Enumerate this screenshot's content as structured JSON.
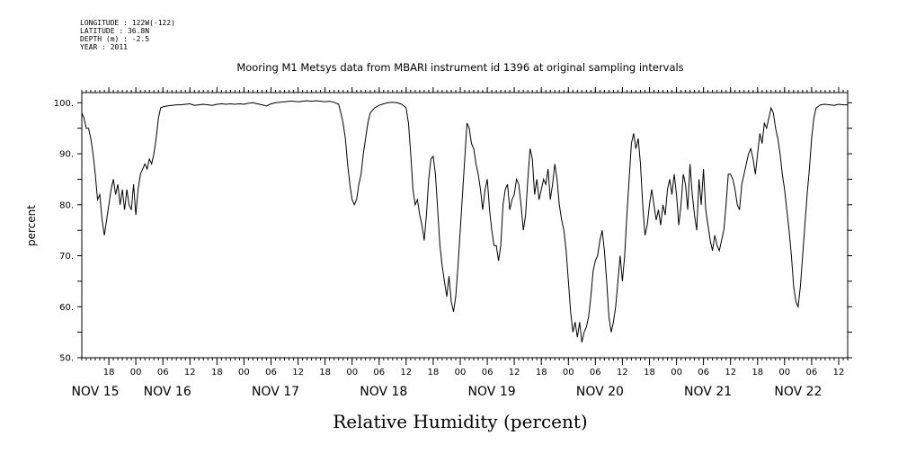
{
  "header": {
    "longitude": "LONGITUDE : 122W(-122)",
    "latitude": "LATITUDE : 36.8N",
    "depth": "DEPTH (m) : -2.5",
    "year": "YEAR : 2011"
  },
  "chart_data": {
    "type": "line",
    "title": "Mooring M1 Metsys data from MBARI instrument id 1396 at original sampling intervals",
    "xlabel": "Relative Humidity (percent)",
    "ylabel": "percent",
    "ylim": [
      50,
      102
    ],
    "yticks": [
      50,
      60,
      70,
      80,
      90,
      100
    ],
    "ytick_labels": [
      "50.",
      "60.",
      "70.",
      "80.",
      "90.",
      "100."
    ],
    "xlim_hours": [
      12,
      182
    ],
    "grid": false,
    "x_ticks": [
      {
        "h": 18,
        "label": "18"
      },
      {
        "h": 24,
        "label": "00"
      },
      {
        "h": 30,
        "label": "06"
      },
      {
        "h": 36,
        "label": "12"
      },
      {
        "h": 42,
        "label": "18"
      },
      {
        "h": 48,
        "label": "00"
      },
      {
        "h": 54,
        "label": "06"
      },
      {
        "h": 60,
        "label": "12"
      },
      {
        "h": 66,
        "label": "18"
      },
      {
        "h": 72,
        "label": "00"
      },
      {
        "h": 78,
        "label": "06"
      },
      {
        "h": 84,
        "label": "12"
      },
      {
        "h": 90,
        "label": "18"
      },
      {
        "h": 96,
        "label": "00"
      },
      {
        "h": 102,
        "label": "06"
      },
      {
        "h": 108,
        "label": "12"
      },
      {
        "h": 114,
        "label": "18"
      },
      {
        "h": 120,
        "label": "00"
      },
      {
        "h": 126,
        "label": "06"
      },
      {
        "h": 132,
        "label": "12"
      },
      {
        "h": 138,
        "label": "18"
      },
      {
        "h": 144,
        "label": "00"
      },
      {
        "h": 150,
        "label": "06"
      },
      {
        "h": 156,
        "label": "12"
      },
      {
        "h": 162,
        "label": "18"
      },
      {
        "h": 168,
        "label": "00"
      },
      {
        "h": 174,
        "label": "06"
      },
      {
        "h": 180,
        "label": "12"
      }
    ],
    "day_labels": [
      {
        "h": 15,
        "label": "NOV 15"
      },
      {
        "h": 31,
        "label": "NOV 16"
      },
      {
        "h": 55,
        "label": "NOV 17"
      },
      {
        "h": 79,
        "label": "NOV 18"
      },
      {
        "h": 103,
        "label": "NOV 19"
      },
      {
        "h": 127,
        "label": "NOV 20"
      },
      {
        "h": 151,
        "label": "NOV 21"
      },
      {
        "h": 171,
        "label": "NOV 22"
      }
    ],
    "series": [
      {
        "points": [
          [
            12.0,
            98
          ],
          [
            12.5,
            97
          ],
          [
            13.0,
            95
          ],
          [
            13.5,
            95
          ],
          [
            14.0,
            93
          ],
          [
            14.5,
            90
          ],
          [
            15.0,
            86
          ],
          [
            15.5,
            81
          ],
          [
            16.0,
            82
          ],
          [
            16.5,
            77
          ],
          [
            17.0,
            74
          ],
          [
            17.5,
            77
          ],
          [
            18.0,
            80
          ],
          [
            18.5,
            83
          ],
          [
            19.0,
            85
          ],
          [
            19.5,
            82
          ],
          [
            20.0,
            84
          ],
          [
            20.5,
            80
          ],
          [
            21.0,
            83
          ],
          [
            21.5,
            79
          ],
          [
            22.0,
            83
          ],
          [
            22.5,
            80
          ],
          [
            23.0,
            79
          ],
          [
            23.5,
            84
          ],
          [
            24.0,
            78
          ],
          [
            24.5,
            83
          ],
          [
            25.0,
            86
          ],
          [
            25.5,
            87
          ],
          [
            26.0,
            88
          ],
          [
            26.5,
            87
          ],
          [
            27.0,
            89
          ],
          [
            27.5,
            88
          ],
          [
            28.0,
            90
          ],
          [
            28.5,
            93
          ],
          [
            29.0,
            97
          ],
          [
            29.5,
            99
          ],
          [
            30.0,
            99.2
          ],
          [
            31.0,
            99.4
          ],
          [
            32.0,
            99.5
          ],
          [
            33.0,
            99.6
          ],
          [
            34.0,
            99.6
          ],
          [
            35.0,
            99.7
          ],
          [
            36.0,
            99.8
          ],
          [
            37.0,
            99.5
          ],
          [
            38.0,
            99.6
          ],
          [
            39.0,
            99.7
          ],
          [
            40.0,
            99.6
          ],
          [
            41.0,
            99.5
          ],
          [
            42.0,
            99.7
          ],
          [
            43.0,
            99.8
          ],
          [
            44.0,
            99.7
          ],
          [
            45.0,
            99.8
          ],
          [
            46.0,
            99.7
          ],
          [
            47.0,
            99.8
          ],
          [
            48.0,
            99.7
          ],
          [
            49.0,
            99.9
          ],
          [
            50.0,
            100
          ],
          [
            51.0,
            99.8
          ],
          [
            52.0,
            99.6
          ],
          [
            53.0,
            99.4
          ],
          [
            54.0,
            99.8
          ],
          [
            55.0,
            100
          ],
          [
            56.0,
            100.1
          ],
          [
            57.0,
            100.2
          ],
          [
            58.0,
            100.3
          ],
          [
            59.0,
            100.3
          ],
          [
            60.0,
            100.2
          ],
          [
            61.0,
            100.3
          ],
          [
            62.0,
            100.4
          ],
          [
            63.0,
            100.3
          ],
          [
            64.0,
            100.4
          ],
          [
            65.0,
            100.3
          ],
          [
            66.0,
            100.2
          ],
          [
            67.0,
            100.3
          ],
          [
            68.0,
            100.1
          ],
          [
            69.0,
            99.7
          ],
          [
            69.5,
            98
          ],
          [
            70.0,
            96
          ],
          [
            70.5,
            93
          ],
          [
            71.0,
            88
          ],
          [
            71.5,
            84
          ],
          [
            72.0,
            81
          ],
          [
            72.5,
            80
          ],
          [
            73.0,
            81
          ],
          [
            73.5,
            84
          ],
          [
            74.0,
            86
          ],
          [
            74.5,
            90
          ],
          [
            75.0,
            93
          ],
          [
            75.5,
            96
          ],
          [
            76.0,
            98
          ],
          [
            77.0,
            99
          ],
          [
            78.0,
            99.5
          ],
          [
            79.0,
            99.8
          ],
          [
            80.0,
            100
          ],
          [
            81.0,
            100.1
          ],
          [
            82.0,
            100
          ],
          [
            83.0,
            99.7
          ],
          [
            84.0,
            99
          ],
          [
            84.5,
            96
          ],
          [
            85.0,
            90
          ],
          [
            85.5,
            83
          ],
          [
            86.0,
            80
          ],
          [
            86.5,
            81
          ],
          [
            87.0,
            78
          ],
          [
            87.5,
            76
          ],
          [
            88.0,
            73
          ],
          [
            88.5,
            78
          ],
          [
            89.0,
            85
          ],
          [
            89.5,
            89
          ],
          [
            90.0,
            89.5
          ],
          [
            90.5,
            86
          ],
          [
            91.0,
            79
          ],
          [
            91.5,
            72
          ],
          [
            92.0,
            68
          ],
          [
            92.5,
            65
          ],
          [
            93.0,
            62
          ],
          [
            93.5,
            66
          ],
          [
            94.0,
            61
          ],
          [
            94.5,
            59
          ],
          [
            95.0,
            62
          ],
          [
            95.5,
            68
          ],
          [
            96.0,
            75
          ],
          [
            96.5,
            82
          ],
          [
            97.0,
            89
          ],
          [
            97.5,
            96
          ],
          [
            98.0,
            95
          ],
          [
            98.5,
            92
          ],
          [
            99.0,
            91
          ],
          [
            99.5,
            88
          ],
          [
            100.0,
            86
          ],
          [
            100.5,
            83
          ],
          [
            101.0,
            79
          ],
          [
            101.5,
            83
          ],
          [
            102.0,
            85
          ],
          [
            102.5,
            79
          ],
          [
            103.0,
            75
          ],
          [
            103.5,
            72
          ],
          [
            104.0,
            72
          ],
          [
            104.5,
            69
          ],
          [
            105.0,
            72
          ],
          [
            105.5,
            80
          ],
          [
            106.0,
            83
          ],
          [
            106.5,
            84
          ],
          [
            107.0,
            79
          ],
          [
            107.5,
            81
          ],
          [
            108.0,
            82
          ],
          [
            108.5,
            85
          ],
          [
            109.0,
            84
          ],
          [
            109.5,
            80
          ],
          [
            110.0,
            75
          ],
          [
            110.5,
            78
          ],
          [
            111.0,
            85
          ],
          [
            111.5,
            91
          ],
          [
            112.0,
            89
          ],
          [
            112.5,
            82
          ],
          [
            113.0,
            85
          ],
          [
            113.5,
            81
          ],
          [
            114.0,
            83
          ],
          [
            114.5,
            85
          ],
          [
            115.0,
            84
          ],
          [
            115.5,
            87
          ],
          [
            116.0,
            81
          ],
          [
            116.5,
            84
          ],
          [
            117.0,
            88
          ],
          [
            117.5,
            85
          ],
          [
            118.0,
            80
          ],
          [
            118.5,
            77
          ],
          [
            119.0,
            75
          ],
          [
            119.5,
            71
          ],
          [
            120.0,
            65
          ],
          [
            120.5,
            59
          ],
          [
            121.0,
            55
          ],
          [
            121.5,
            57
          ],
          [
            122.0,
            54
          ],
          [
            122.5,
            57
          ],
          [
            123.0,
            53
          ],
          [
            123.5,
            55
          ],
          [
            124.0,
            56
          ],
          [
            124.5,
            58
          ],
          [
            125.0,
            62
          ],
          [
            125.5,
            67
          ],
          [
            126.0,
            69
          ],
          [
            126.5,
            70
          ],
          [
            127.0,
            73
          ],
          [
            127.5,
            75
          ],
          [
            128.0,
            71
          ],
          [
            128.5,
            65
          ],
          [
            129.0,
            58
          ],
          [
            129.5,
            55
          ],
          [
            130.0,
            57
          ],
          [
            130.5,
            60
          ],
          [
            131.0,
            65
          ],
          [
            131.5,
            70
          ],
          [
            132.0,
            65
          ],
          [
            132.5,
            70
          ],
          [
            133.0,
            78
          ],
          [
            133.5,
            85
          ],
          [
            134.0,
            92
          ],
          [
            134.5,
            94
          ],
          [
            135.0,
            91
          ],
          [
            135.5,
            93
          ],
          [
            136.0,
            88
          ],
          [
            136.5,
            80
          ],
          [
            137.0,
            74
          ],
          [
            137.5,
            76
          ],
          [
            138.0,
            80
          ],
          [
            138.5,
            83
          ],
          [
            139.0,
            80
          ],
          [
            139.5,
            77
          ],
          [
            140.0,
            79
          ],
          [
            140.5,
            76
          ],
          [
            141.0,
            80
          ],
          [
            141.5,
            78
          ],
          [
            142.0,
            83
          ],
          [
            142.5,
            85
          ],
          [
            143.0,
            82
          ],
          [
            143.5,
            86
          ],
          [
            144.0,
            82
          ],
          [
            144.5,
            76
          ],
          [
            145.0,
            80
          ],
          [
            145.5,
            86
          ],
          [
            146.0,
            84
          ],
          [
            146.5,
            79
          ],
          [
            147.0,
            88
          ],
          [
            147.5,
            82
          ],
          [
            148.0,
            78
          ],
          [
            148.5,
            75
          ],
          [
            149.0,
            85
          ],
          [
            149.5,
            80
          ],
          [
            150.0,
            87
          ],
          [
            150.5,
            79
          ],
          [
            151.0,
            76
          ],
          [
            151.5,
            73
          ],
          [
            152.0,
            71
          ],
          [
            152.5,
            74
          ],
          [
            153.0,
            72
          ],
          [
            153.5,
            71
          ],
          [
            154.0,
            73
          ],
          [
            154.5,
            75
          ],
          [
            155.0,
            80
          ],
          [
            155.5,
            86
          ],
          [
            156.0,
            86
          ],
          [
            156.5,
            85
          ],
          [
            157.0,
            83
          ],
          [
            157.5,
            80
          ],
          [
            158.0,
            79
          ],
          [
            158.5,
            84
          ],
          [
            159.0,
            86
          ],
          [
            159.5,
            88
          ],
          [
            160.0,
            90
          ],
          [
            160.5,
            91
          ],
          [
            161.0,
            89
          ],
          [
            161.5,
            86
          ],
          [
            162.0,
            90
          ],
          [
            162.5,
            94
          ],
          [
            163.0,
            92
          ],
          [
            163.5,
            96
          ],
          [
            164.0,
            95
          ],
          [
            164.5,
            97
          ],
          [
            165.0,
            99
          ],
          [
            165.5,
            98
          ],
          [
            166.0,
            95
          ],
          [
            166.5,
            93
          ],
          [
            167.0,
            90
          ],
          [
            167.5,
            86
          ],
          [
            168.0,
            83
          ],
          [
            168.5,
            79
          ],
          [
            169.0,
            75
          ],
          [
            169.5,
            70
          ],
          [
            170.0,
            64
          ],
          [
            170.5,
            61
          ],
          [
            171.0,
            60
          ],
          [
            171.5,
            64
          ],
          [
            172.0,
            70
          ],
          [
            172.5,
            76
          ],
          [
            173.0,
            82
          ],
          [
            173.5,
            87
          ],
          [
            174.0,
            93
          ],
          [
            174.5,
            97
          ],
          [
            175.0,
            99
          ],
          [
            176.0,
            99.6
          ],
          [
            177.0,
            99.7
          ],
          [
            178.0,
            99.6
          ],
          [
            179.0,
            99.5
          ],
          [
            180.0,
            99.7
          ],
          [
            181.0,
            99.6
          ],
          [
            182.0,
            99.6
          ]
        ]
      }
    ]
  }
}
